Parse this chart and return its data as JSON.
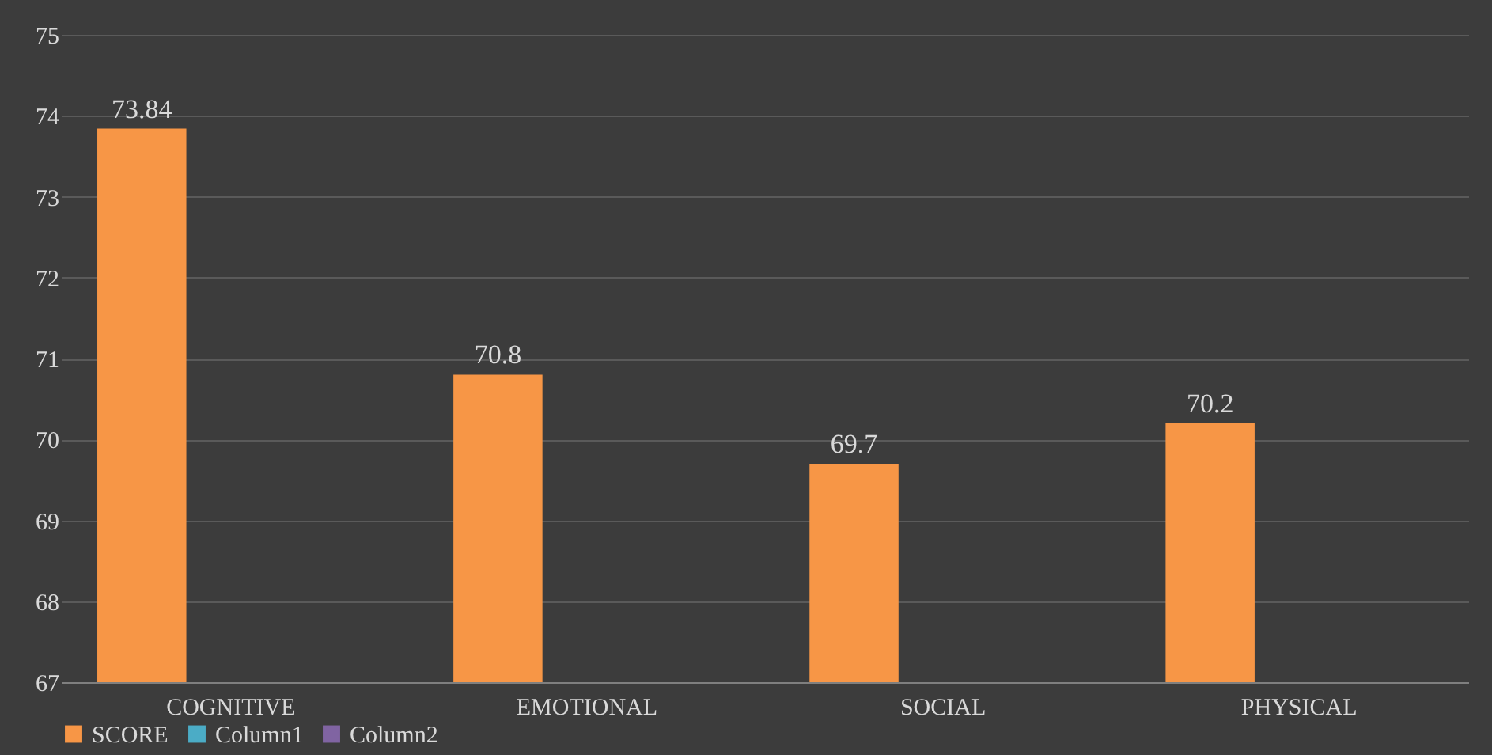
{
  "chart_data": {
    "type": "bar",
    "categories": [
      "COGNITIVE",
      "EMOTIONAL",
      "SOCIAL",
      "PHYSICAL"
    ],
    "series": [
      {
        "name": "SCORE",
        "color": "#f79646",
        "values": [
          73.84,
          70.8,
          69.7,
          70.2
        ]
      },
      {
        "name": "Column1",
        "color": "#4bacc6",
        "values": [
          null,
          null,
          null,
          null
        ]
      },
      {
        "name": "Column2",
        "color": "#8064a2",
        "values": [
          null,
          null,
          null,
          null
        ]
      }
    ],
    "ylim": [
      67,
      75
    ],
    "yticks": [
      67,
      68,
      69,
      70,
      71,
      72,
      73,
      74,
      75
    ],
    "grid": "y",
    "legend": "bottom",
    "data_labels": true
  }
}
